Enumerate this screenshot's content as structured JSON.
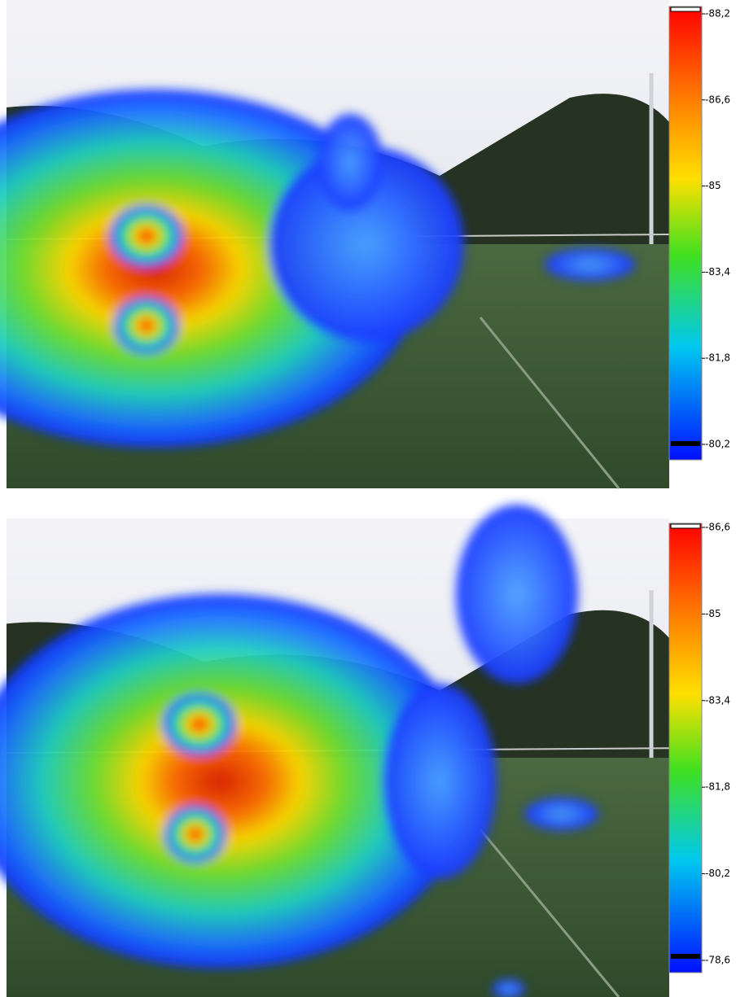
{
  "panels": [
    {
      "colorbar": {
        "ticks": [
          "-88,2",
          "-86,6",
          "-85",
          "-83,4",
          "-81,8",
          "-80,2"
        ]
      }
    },
    {
      "colorbar": {
        "ticks": [
          "-86,6",
          "-85",
          "-83,4",
          "-81,8",
          "-80,2",
          "-78,6"
        ]
      }
    }
  ]
}
